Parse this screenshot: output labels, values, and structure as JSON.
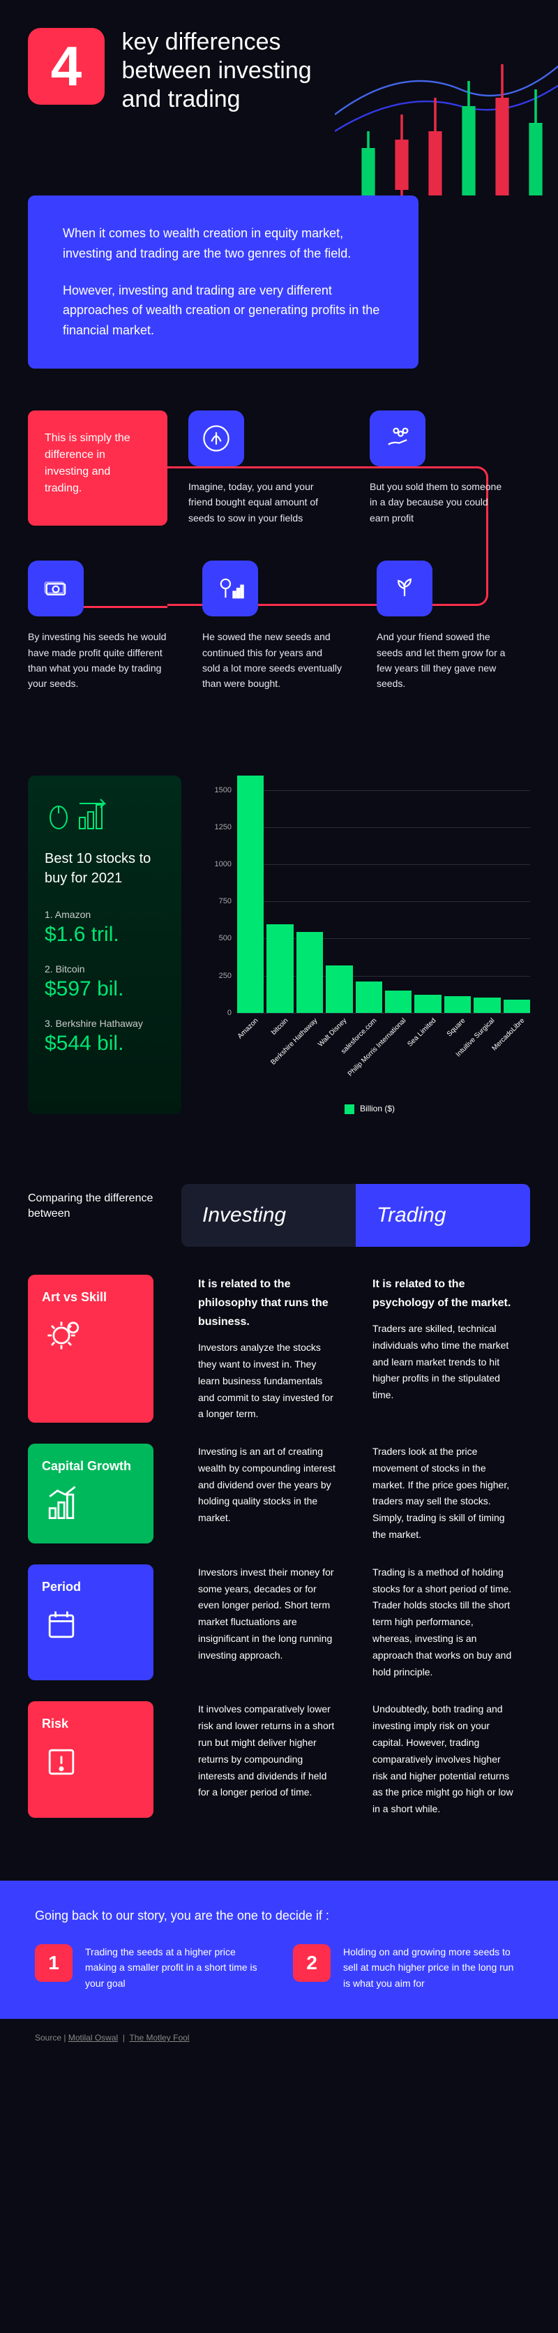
{
  "colors": {
    "bg": "#0a0b14",
    "accent_red": "#ff2e4c",
    "accent_blue": "#3a3fff",
    "accent_green": "#00e673",
    "text": "#ffffff",
    "muted": "#aaaaaa",
    "panel_dark": "#1a1d2e",
    "grid": "#2a2d3a"
  },
  "header": {
    "number": "4",
    "title": "key differences between investing and trading"
  },
  "intro": {
    "p1": "When it comes to wealth creation in equity market, investing and trading are the two genres of the field.",
    "p2": "However, investing and trading are very different approaches of wealth creation or generating profits in the financial market."
  },
  "story": {
    "lead": "This is simply the difference in investing and trading.",
    "items": [
      {
        "icon": "leaf",
        "text": "Imagine, today, you and your friend bought equal amount of seeds to sow in your fields"
      },
      {
        "icon": "hand-coins",
        "text": "But you sold them to someone in a day because you could earn profit"
      },
      {
        "icon": "cash",
        "text": "By investing his seeds he would have made profit quite different than what you made by trading your seeds."
      },
      {
        "icon": "tree-chart",
        "text": "He sowed the new seeds and continued this for years and sold a lot more seeds eventually than were bought."
      },
      {
        "icon": "sprout",
        "text": "And your friend sowed the seeds and let them grow for a few years till they gave new seeds."
      }
    ]
  },
  "stocks_panel": {
    "title": "Best 10 stocks to buy for 2021",
    "top3": [
      {
        "rank": "1.  Amazon",
        "value": "$1.6 tril."
      },
      {
        "rank": "2.  Bitcoin",
        "value": "$597 bil."
      },
      {
        "rank": "3.  Berkshire Hathaway",
        "value": "$544 bil."
      }
    ]
  },
  "chart": {
    "type": "bar",
    "ylim": [
      0,
      1600
    ],
    "ytick_step": 250,
    "yticks": [
      0,
      250,
      500,
      750,
      1000,
      1250,
      1500
    ],
    "bar_color": "#00e673",
    "grid_color": "#2a2d3a",
    "label_fontsize": 10,
    "categories": [
      "Amazon",
      "bitcoin",
      "Berkshire Hathaway",
      "Walt Disney",
      "salesforce.com",
      "Philip Morris International",
      "Sea Limited",
      "Square",
      "Intuitive Surgical",
      "MercadoLibre"
    ],
    "values": [
      1600,
      597,
      544,
      320,
      210,
      150,
      120,
      110,
      100,
      90
    ],
    "legend": "Billion ($)"
  },
  "compare": {
    "heading_label": "Comparing the difference between",
    "col_investing": "Investing",
    "col_trading": "Trading",
    "rows": [
      {
        "tag": "Art vs Skill",
        "color": "#ff2e4c",
        "icon": "gear-bulb",
        "investing_bold": "It is related to the philosophy that runs the business.",
        "investing": "Investors analyze the stocks they want to invest in. They learn business fundamentals and commit to stay invested for a longer term.",
        "trading_bold": "It is related to the psychology of the market.",
        "trading": "Traders are skilled, technical individuals who time the market and learn market trends to hit higher profits in the stipulated time."
      },
      {
        "tag": "Capital Growth",
        "color": "#00b85c",
        "icon": "growth-chart",
        "investing_bold": "",
        "investing": "Investing is an art of creating wealth by compounding interest and dividend over the years by holding quality stocks in the market.",
        "trading_bold": "",
        "trading": "Traders look at the price movement of stocks in the market. If the price goes higher, traders may sell the stocks. Simply, trading is skill of timing the market."
      },
      {
        "tag": "Period",
        "color": "#3a3fff",
        "icon": "calendar",
        "investing_bold": "",
        "investing": "Investors invest their money for some years, decades or for even longer period. Short term market fluctuations are insignificant in the long running investing approach.",
        "trading_bold": "",
        "trading": "Trading is a method of holding stocks for a short period of time. Trader holds stocks till the short term high performance, whereas, investing is an approach that works on buy and hold principle."
      },
      {
        "tag": "Risk",
        "color": "#ff2e4c",
        "icon": "warning",
        "investing_bold": "",
        "investing": "It involves comparatively lower risk and lower returns in a short run but might deliver higher returns by compounding interests and dividends if held for a longer period of time.",
        "trading_bold": "",
        "trading": "Undoubtedly, both trading and investing imply risk on your capital. However, trading comparatively involves higher risk and higher potential returns as the price might go high or low in a short while."
      }
    ]
  },
  "footer": {
    "lead": "Going back to our story, you are the one to decide if :",
    "options": [
      {
        "num": "1",
        "text": "Trading the seeds at a higher price making a smaller profit in a short time is your goal"
      },
      {
        "num": "2",
        "text": "Holding on and growing more seeds to sell at much higher price in the long run is what you aim for"
      }
    ]
  },
  "source": {
    "label": "Source  |",
    "links": [
      "Motilal Oswal",
      "The Motley Fool"
    ]
  }
}
